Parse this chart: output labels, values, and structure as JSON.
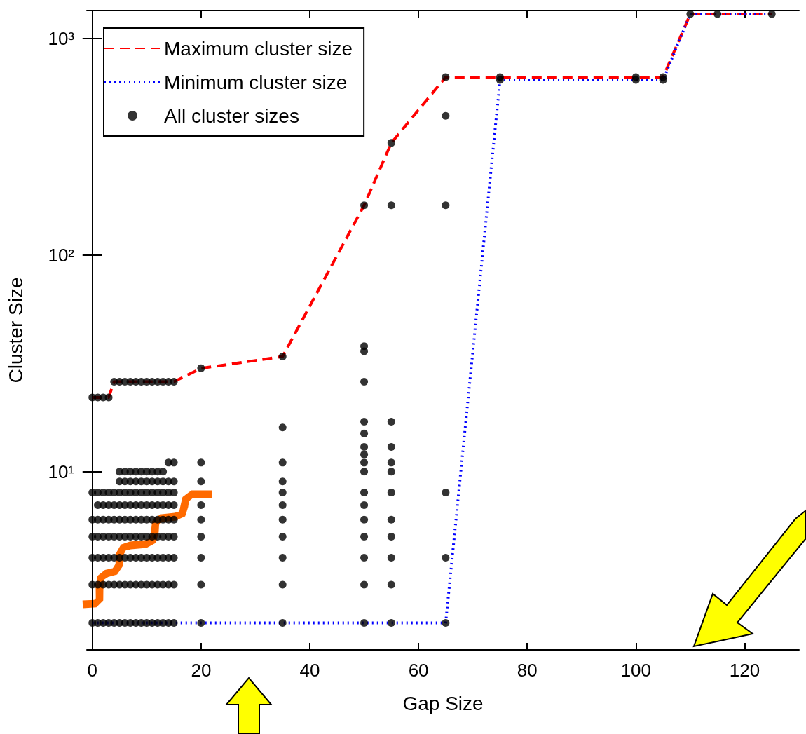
{
  "chart_data": {
    "type": "scatter",
    "xlabel": "Gap Size",
    "ylabel": "Cluster Size",
    "xlim": [
      -1,
      130
    ],
    "xticks": [
      0,
      20,
      40,
      60,
      80,
      100,
      120
    ],
    "ylim": [
      1.5,
      1350
    ],
    "yticks": [
      {
        "value": 10,
        "label": "10¹"
      },
      {
        "value": 100,
        "label": "10²"
      },
      {
        "value": 1000,
        "label": "10³"
      }
    ],
    "log": "y",
    "grid": false,
    "legend": "top left",
    "series": [
      {
        "name": "Maximum cluster size",
        "type": "line",
        "color": "#ff0000",
        "line_style": "dashed",
        "marker": "none",
        "x": [
          0,
          3,
          4,
          15,
          20,
          35,
          50,
          55,
          65,
          75,
          100,
          105,
          110,
          115,
          125
        ],
        "values": [
          22,
          22,
          26,
          26,
          30,
          34,
          170,
          330,
          665,
          665,
          665,
          665,
          1300,
          1300,
          1300
        ]
      },
      {
        "name": "Minimum cluster size",
        "type": "line",
        "color": "#0000ff",
        "line_style": "dotted",
        "marker": "none",
        "x": [
          0,
          15,
          20,
          35,
          50,
          55,
          65,
          75,
          100,
          105,
          110,
          115,
          125
        ],
        "values": [
          2,
          2,
          2,
          2,
          2,
          2,
          2,
          645,
          645,
          645,
          1300,
          1300,
          1300
        ]
      },
      {
        "name": "All cluster sizes",
        "type": "scatter",
        "color": "#000000",
        "marker": "circle",
        "x": [
          0,
          0,
          0,
          0,
          0,
          0,
          0,
          1,
          1,
          1,
          1,
          1,
          1,
          1,
          1,
          2,
          2,
          2,
          2,
          2,
          2,
          2,
          2,
          3,
          3,
          3,
          3,
          3,
          3,
          3,
          3,
          4,
          4,
          4,
          4,
          4,
          4,
          4,
          4,
          5,
          5,
          5,
          5,
          5,
          5,
          5,
          5,
          5,
          5,
          6,
          6,
          6,
          6,
          6,
          6,
          6,
          6,
          6,
          6,
          7,
          7,
          7,
          7,
          7,
          7,
          7,
          7,
          7,
          7,
          8,
          8,
          8,
          8,
          8,
          8,
          8,
          8,
          8,
          8,
          9,
          9,
          9,
          9,
          9,
          9,
          9,
          9,
          9,
          9,
          10,
          10,
          10,
          10,
          10,
          10,
          10,
          10,
          10,
          10,
          11,
          11,
          11,
          11,
          11,
          11,
          11,
          11,
          11,
          11,
          12,
          12,
          12,
          12,
          12,
          12,
          12,
          12,
          12,
          12,
          13,
          13,
          13,
          13,
          13,
          13,
          13,
          13,
          13,
          13,
          14,
          14,
          14,
          14,
          14,
          14,
          14,
          14,
          14,
          14,
          15,
          15,
          15,
          15,
          15,
          15,
          15,
          15,
          15,
          15,
          20,
          20,
          20,
          20,
          20,
          20,
          20,
          20,
          20,
          35,
          35,
          35,
          35,
          35,
          35,
          35,
          35,
          35,
          35,
          35,
          50,
          50,
          50,
          50,
          50,
          50,
          50,
          50,
          50,
          50,
          50,
          50,
          50,
          50,
          50,
          50,
          50,
          55,
          55,
          55,
          55,
          55,
          55,
          55,
          55,
          55,
          55,
          55,
          55,
          65,
          65,
          65,
          65,
          65,
          65,
          75,
          75,
          100,
          100,
          105,
          105,
          110,
          115,
          125
        ],
        "values": [
          22,
          8,
          6,
          5,
          4,
          3,
          2,
          22,
          8,
          7,
          6,
          5,
          4,
          3,
          2,
          22,
          8,
          7,
          6,
          5,
          4,
          3,
          2,
          22,
          8,
          7,
          6,
          5,
          4,
          3,
          2,
          26,
          8,
          7,
          6,
          5,
          4,
          3,
          2,
          26,
          10,
          9,
          8,
          7,
          6,
          5,
          4,
          3,
          2,
          26,
          10,
          9,
          8,
          7,
          6,
          5,
          4,
          3,
          2,
          26,
          10,
          9,
          8,
          7,
          6,
          5,
          4,
          3,
          2,
          26,
          10,
          9,
          8,
          7,
          6,
          5,
          4,
          3,
          2,
          26,
          10,
          9,
          8,
          7,
          6,
          5,
          4,
          3,
          2,
          26,
          10,
          9,
          8,
          7,
          6,
          5,
          4,
          3,
          2,
          26,
          10,
          9,
          8,
          7,
          6,
          5,
          4,
          3,
          2,
          26,
          10,
          9,
          8,
          7,
          6,
          5,
          4,
          3,
          2,
          26,
          10,
          9,
          8,
          7,
          6,
          5,
          4,
          3,
          2,
          26,
          11,
          9,
          8,
          7,
          6,
          5,
          4,
          3,
          2,
          26,
          11,
          9,
          8,
          7,
          6,
          5,
          4,
          3,
          2,
          30,
          11,
          9,
          7,
          6,
          5,
          4,
          3,
          2,
          34,
          16,
          11,
          9,
          8,
          7,
          6,
          5,
          4,
          3,
          2,
          170,
          38,
          36,
          26,
          17,
          15,
          13,
          12,
          11,
          10,
          8,
          7,
          6,
          5,
          4,
          3,
          2,
          330,
          170,
          17,
          13,
          11,
          10,
          8,
          6,
          5,
          4,
          3,
          2,
          665,
          440,
          170,
          8,
          4,
          2,
          665,
          645,
          665,
          645,
          665,
          645,
          1300,
          1300,
          1300
        ]
      }
    ]
  }
}
